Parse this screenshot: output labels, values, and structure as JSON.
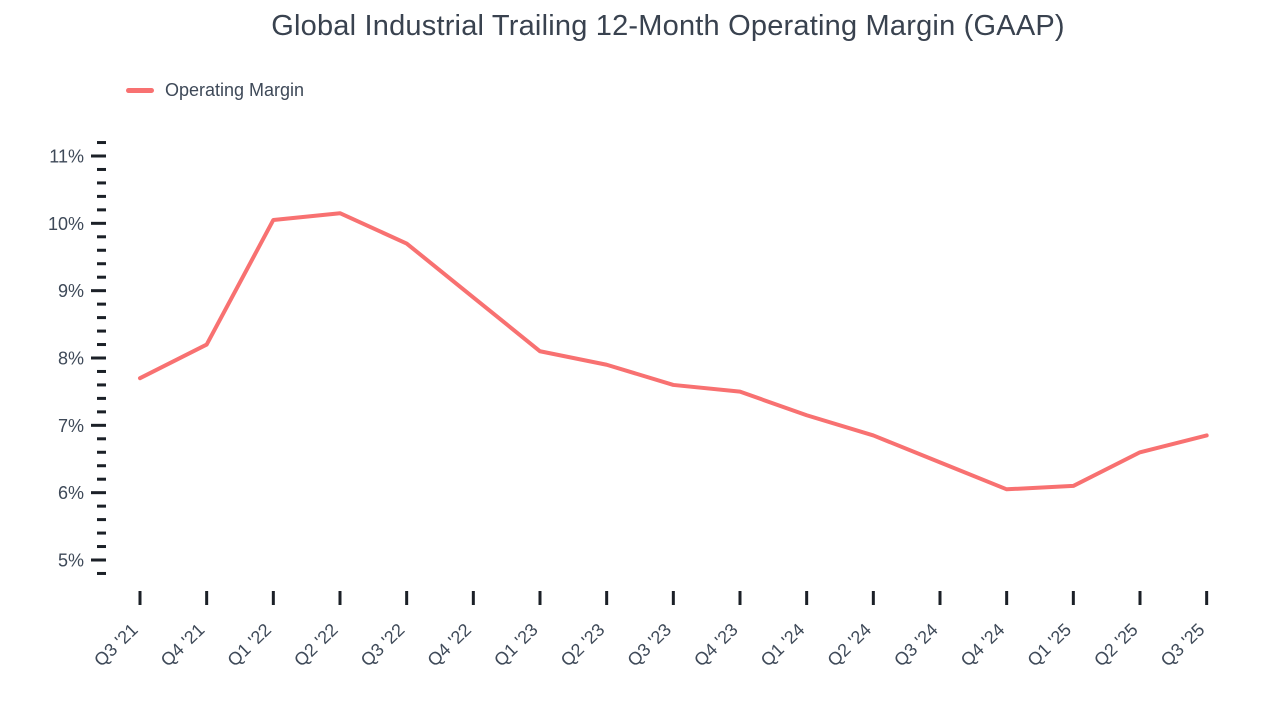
{
  "colors": {
    "line": "#F87171",
    "title_text": "#39424F",
    "axis_text": "#3E4958",
    "tick_mark": "#1B2027",
    "background": "#FFFFFF"
  },
  "chart_data": {
    "type": "line",
    "title": "Global Industrial Trailing 12-Month Operating Margin (GAAP)",
    "legend_position": "top-left",
    "grid": false,
    "categories": [
      "Q3 '21",
      "Q4 '21",
      "Q1 '22",
      "Q2 '22",
      "Q3 '22",
      "Q4 '22",
      "Q1 '23",
      "Q2 '23",
      "Q3 '23",
      "Q4 '23",
      "Q1 '24",
      "Q2 '24",
      "Q3 '24",
      "Q4 '24",
      "Q1 '25",
      "Q2 '25",
      "Q3 '25"
    ],
    "series": [
      {
        "name": "Operating Margin",
        "values": [
          7.7,
          8.2,
          10.05,
          10.15,
          9.7,
          8.9,
          8.1,
          7.9,
          7.6,
          7.5,
          7.15,
          6.85,
          6.45,
          6.05,
          6.1,
          6.6,
          6.85
        ]
      }
    ],
    "unit": "%",
    "y_axis": {
      "labels": [
        "11%",
        "10%",
        "9%",
        "8%",
        "7%",
        "6%",
        "5%"
      ],
      "label_values": [
        11,
        10,
        9,
        8,
        7,
        6,
        5
      ],
      "minor_tick_step": 0.2,
      "range_min": 4.8,
      "range_max": 11.2
    }
  }
}
